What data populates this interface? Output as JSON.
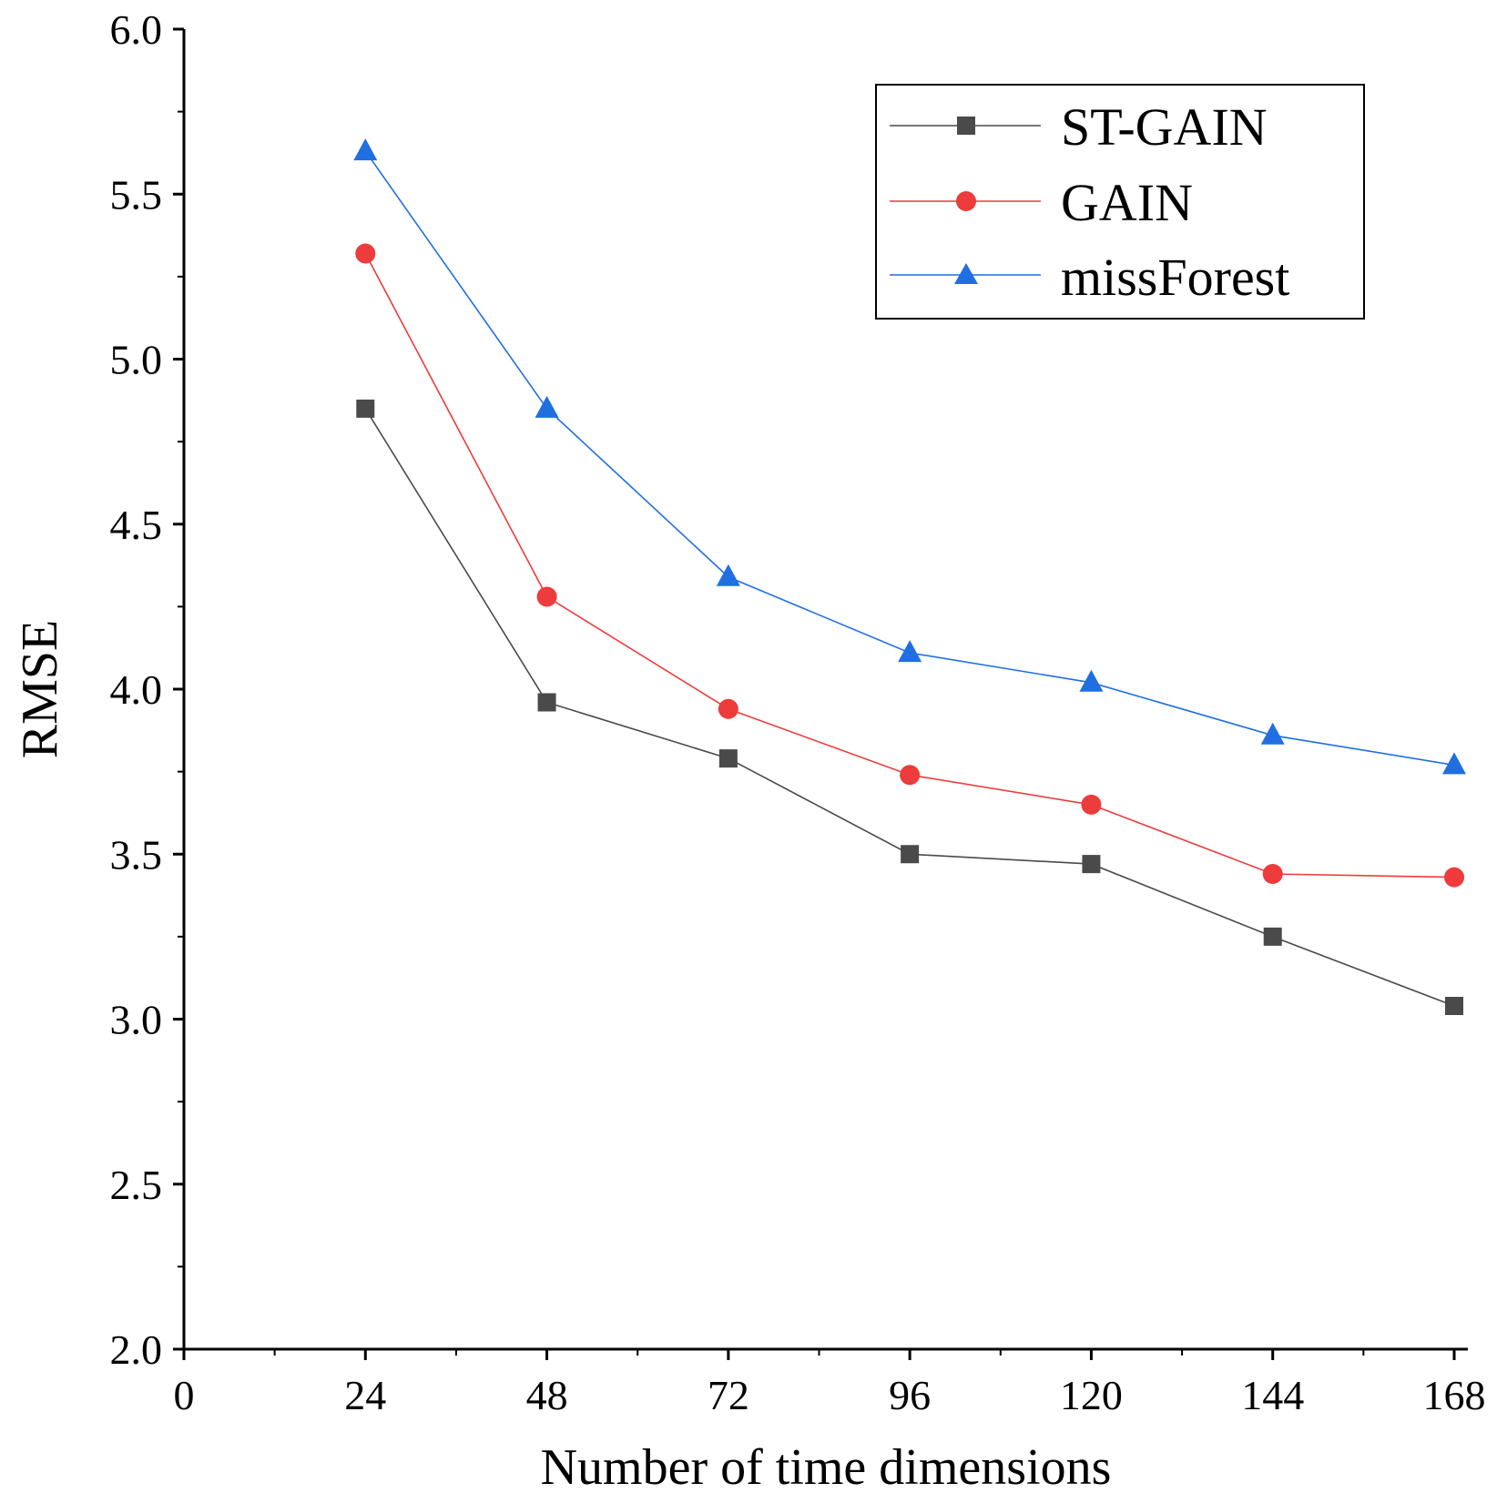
{
  "chart_data": {
    "type": "line",
    "title": "",
    "xlabel": "Number of time dimensions",
    "ylabel": "RMSE",
    "xlim": [
      0,
      168
    ],
    "ylim": [
      2.0,
      6.0
    ],
    "x": [
      24,
      48,
      72,
      96,
      120,
      144,
      168
    ],
    "x_ticks": [
      0,
      24,
      48,
      72,
      96,
      120,
      144,
      168
    ],
    "x_tick_labels": [
      "0",
      "24",
      "48",
      "72",
      "96",
      "120",
      "144",
      "168"
    ],
    "y_ticks": [
      2.0,
      2.5,
      3.0,
      3.5,
      4.0,
      4.5,
      5.0,
      5.5,
      6.0
    ],
    "y_tick_labels": [
      "2.0",
      "2.5",
      "3.0",
      "3.5",
      "4.0",
      "4.5",
      "5.0",
      "5.5",
      "6.0"
    ],
    "grid": false,
    "legend_position": "top-right",
    "series": [
      {
        "name": "ST-GAIN",
        "color": "#4a4a4a",
        "marker": "square",
        "values": [
          4.85,
          3.96,
          3.79,
          3.5,
          3.47,
          3.25,
          3.04
        ]
      },
      {
        "name": "GAIN",
        "color": "#ee3b3b",
        "marker": "circle",
        "values": [
          5.32,
          4.28,
          3.94,
          3.74,
          3.65,
          3.44,
          3.43
        ]
      },
      {
        "name": "missForest",
        "color": "#1f6fe0",
        "marker": "triangle",
        "values": [
          5.63,
          4.85,
          4.34,
          4.11,
          4.02,
          3.86,
          3.77
        ]
      }
    ]
  }
}
